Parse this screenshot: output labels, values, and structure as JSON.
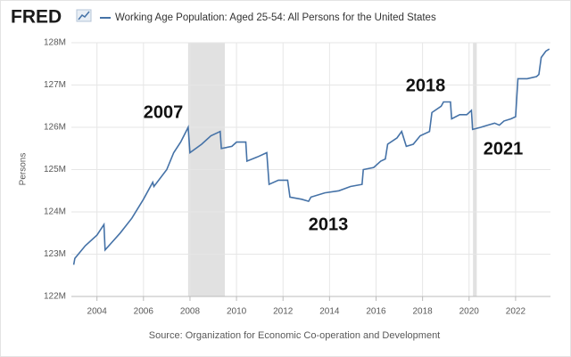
{
  "logo": "FRED",
  "chart_data": {
    "type": "line",
    "series": [
      {
        "name": "Working Age Population: Aged 25-54: All Persons for the United States",
        "color": "#4572a7",
        "x": [
          2003.0,
          2003.05,
          2003.5,
          2004.0,
          2004.3,
          2004.35,
          2005.0,
          2005.5,
          2006.0,
          2006.4,
          2006.45,
          2007.0,
          2007.3,
          2007.6,
          2007.92,
          2008.0,
          2008.5,
          2008.9,
          2009.3,
          2009.35,
          2009.8,
          2010.0,
          2010.4,
          2010.45,
          2010.9,
          2011.3,
          2011.4,
          2011.8,
          2012.2,
          2012.3,
          2012.8,
          2013.1,
          2013.2,
          2013.8,
          2014.4,
          2014.9,
          2015.4,
          2015.45,
          2015.9,
          2016.2,
          2016.4,
          2016.5,
          2016.9,
          2017.1,
          2017.3,
          2017.6,
          2017.9,
          2018.3,
          2018.4,
          2018.8,
          2018.9,
          2019.2,
          2019.25,
          2019.6,
          2019.9,
          2020.1,
          2020.15,
          2020.5,
          2020.8,
          2021.1,
          2021.3,
          2021.5,
          2021.8,
          2022.0,
          2022.1,
          2022.5,
          2022.9,
          2023.0,
          2023.1,
          2023.3,
          2023.45
        ],
        "values": [
          122.75,
          122.9,
          123.2,
          123.45,
          123.7,
          123.1,
          123.5,
          123.85,
          124.3,
          124.7,
          124.6,
          125.0,
          125.4,
          125.65,
          126.0,
          125.4,
          125.6,
          125.8,
          125.9,
          125.5,
          125.55,
          125.65,
          125.65,
          125.2,
          125.3,
          125.4,
          124.65,
          124.75,
          124.75,
          124.35,
          124.3,
          124.25,
          124.35,
          124.45,
          124.5,
          124.6,
          124.65,
          125.0,
          125.05,
          125.2,
          125.25,
          125.6,
          125.75,
          125.9,
          125.55,
          125.6,
          125.8,
          125.9,
          126.35,
          126.5,
          126.6,
          126.6,
          126.2,
          126.3,
          126.3,
          126.4,
          125.95,
          126.0,
          126.05,
          126.1,
          126.05,
          126.15,
          126.2,
          126.25,
          127.15,
          127.15,
          127.2,
          127.25,
          127.65,
          127.8,
          127.85
        ]
      }
    ],
    "recessions": [
      [
        2007.92,
        2009.5
      ],
      [
        2020.17,
        2020.33
      ]
    ],
    "xlim": [
      2002.9,
      2023.5
    ],
    "xticks": [
      2004,
      2006,
      2008,
      2010,
      2012,
      2014,
      2016,
      2018,
      2020,
      2022
    ],
    "ylim": [
      122,
      128
    ],
    "yticks": [
      {
        "value": 122,
        "label": "122M"
      },
      {
        "value": 123,
        "label": "123M"
      },
      {
        "value": 124,
        "label": "124M"
      },
      {
        "value": 125,
        "label": "125M"
      },
      {
        "value": 126,
        "label": "126M"
      },
      {
        "value": 127,
        "label": "127M"
      },
      {
        "value": 128,
        "label": "128M"
      }
    ],
    "ylabel": "Persons",
    "annotations": [
      "2007",
      "2018",
      "2013",
      "2021"
    ],
    "source": "Source: Organization for Economic Co-operation and Development",
    "grid": true
  }
}
